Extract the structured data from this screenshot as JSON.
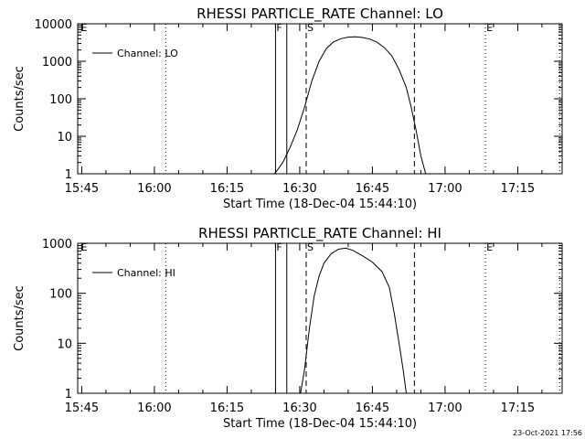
{
  "footer": {
    "timestamp": "23-Oct-2021 17:56"
  },
  "chart_data": [
    {
      "type": "line",
      "title": "RHESSI PARTICLE_RATE Channel: LO",
      "xlabel": "Start Time (18-Dec-04 15:44:10)",
      "ylabel": "Counts/sec",
      "yscale": "log",
      "ylim": [
        1,
        10000
      ],
      "xlim": [
        "15:44:10",
        "17:24:10"
      ],
      "x_ticks": [
        "15:45",
        "16:00",
        "16:15",
        "16:30",
        "16:45",
        "17:00",
        "17:15"
      ],
      "y_ticks": [
        "1",
        "10",
        "100",
        "1000",
        "10000"
      ],
      "legend": {
        "position": "top-left",
        "entries": [
          "Channel: LO"
        ]
      },
      "series": [
        {
          "name": "Channel: LO",
          "x": [
            "16:24:50",
            "16:26:30",
            "16:28:00",
            "16:29:30",
            "16:31:00",
            "16:32:30",
            "16:34:00",
            "16:35:30",
            "16:37:00",
            "16:38:30",
            "16:40:00",
            "16:41:30",
            "16:43:00",
            "16:44:30",
            "16:46:00",
            "16:47:30",
            "16:49:00",
            "16:50:30",
            "16:52:00",
            "16:53:00",
            "16:54:00",
            "16:55:00",
            "16:56:00"
          ],
          "y": [
            1,
            2,
            5,
            15,
            60,
            300,
            1000,
            2200,
            3300,
            4000,
            4400,
            4500,
            4300,
            3900,
            3200,
            2300,
            1400,
            600,
            200,
            60,
            15,
            3,
            1
          ]
        }
      ],
      "vlines": [
        {
          "label": "F",
          "x": "16:25:00",
          "style": "solid"
        },
        {
          "label": "",
          "x": "16:27:20",
          "style": "solid"
        },
        {
          "label": "S",
          "x": "16:31:20",
          "style": "dashed"
        },
        {
          "label": "",
          "x": "16:53:40",
          "style": "dashed"
        },
        {
          "label": "E",
          "x": "17:08:20",
          "style": "dotted"
        },
        {
          "label": "",
          "x": "16:02:20",
          "style": "dotted"
        },
        {
          "label": "",
          "x": "17:23:40",
          "style": "dotted"
        },
        {
          "label": "E",
          "x": "15:44:40",
          "style": "none"
        }
      ]
    },
    {
      "type": "line",
      "title": "RHESSI PARTICLE_RATE Channel: HI",
      "xlabel": "Start Time (18-Dec-04 15:44:10)",
      "ylabel": "Counts/sec",
      "yscale": "log",
      "ylim": [
        1,
        1000
      ],
      "xlim": [
        "15:44:10",
        "17:24:10"
      ],
      "x_ticks": [
        "15:45",
        "16:00",
        "16:15",
        "16:30",
        "16:45",
        "17:00",
        "17:15"
      ],
      "y_ticks": [
        "1",
        "10",
        "100",
        "1000"
      ],
      "legend": {
        "position": "top-left",
        "entries": [
          "Channel: HI"
        ]
      },
      "series": [
        {
          "name": "Channel: HI",
          "x": [
            "16:30:10",
            "16:31:00",
            "16:32:00",
            "16:33:00",
            "16:34:00",
            "16:35:00",
            "16:36:30",
            "16:38:00",
            "16:39:30",
            "16:41:00",
            "16:43:00",
            "16:45:00",
            "16:47:00",
            "16:48:30",
            "16:49:30",
            "16:50:30",
            "16:51:20",
            "16:52:00"
          ],
          "y": [
            1,
            3,
            20,
            90,
            220,
            400,
            620,
            760,
            800,
            720,
            560,
            420,
            270,
            130,
            40,
            10,
            3,
            1
          ]
        }
      ],
      "vlines": [
        {
          "label": "F",
          "x": "16:25:00",
          "style": "solid"
        },
        {
          "label": "",
          "x": "16:27:20",
          "style": "solid"
        },
        {
          "label": "S",
          "x": "16:31:20",
          "style": "dashed"
        },
        {
          "label": "",
          "x": "16:53:40",
          "style": "dashed"
        },
        {
          "label": "E",
          "x": "17:08:20",
          "style": "dotted"
        },
        {
          "label": "",
          "x": "16:02:20",
          "style": "dotted"
        },
        {
          "label": "",
          "x": "17:23:40",
          "style": "dotted"
        },
        {
          "label": "E",
          "x": "15:44:40",
          "style": "none"
        }
      ]
    }
  ]
}
